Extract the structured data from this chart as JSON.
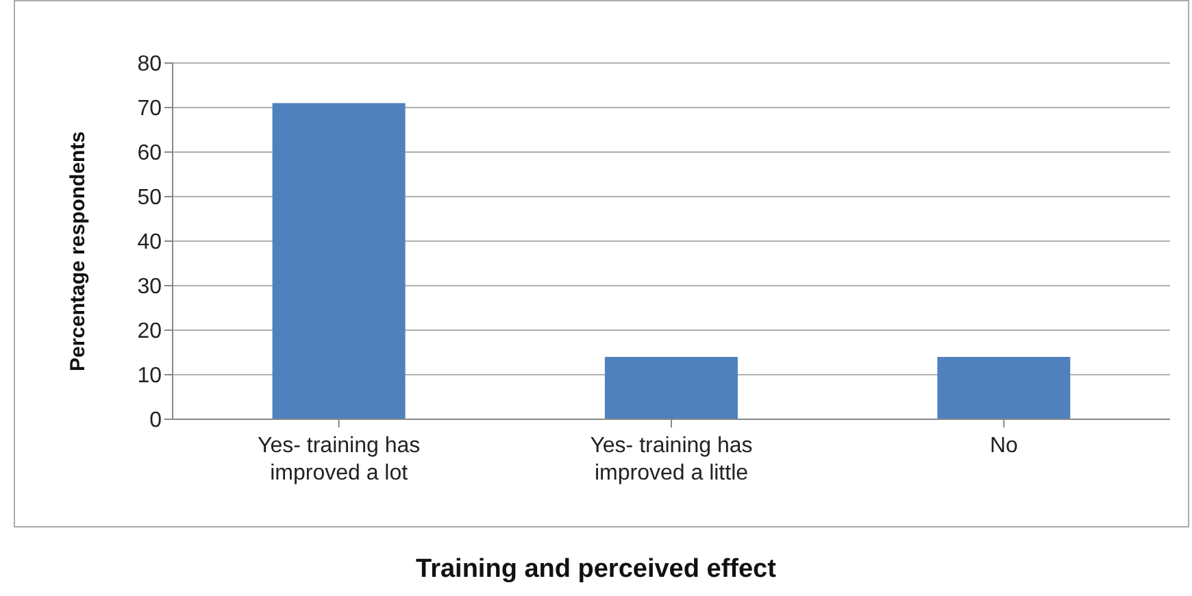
{
  "chart_data": {
    "type": "bar",
    "title": "Training and perceived effect",
    "ylabel": "Percentage respondents",
    "categories": [
      "Yes- training has improved a lot",
      "Yes- training has improved a little",
      "No"
    ],
    "values": [
      71,
      14,
      14
    ],
    "color": "#4f81bd",
    "ylim": [
      0,
      80
    ],
    "yticks": [
      0,
      10,
      20,
      30,
      40,
      50,
      60,
      70,
      80
    ],
    "grid": "y",
    "legend": false
  }
}
